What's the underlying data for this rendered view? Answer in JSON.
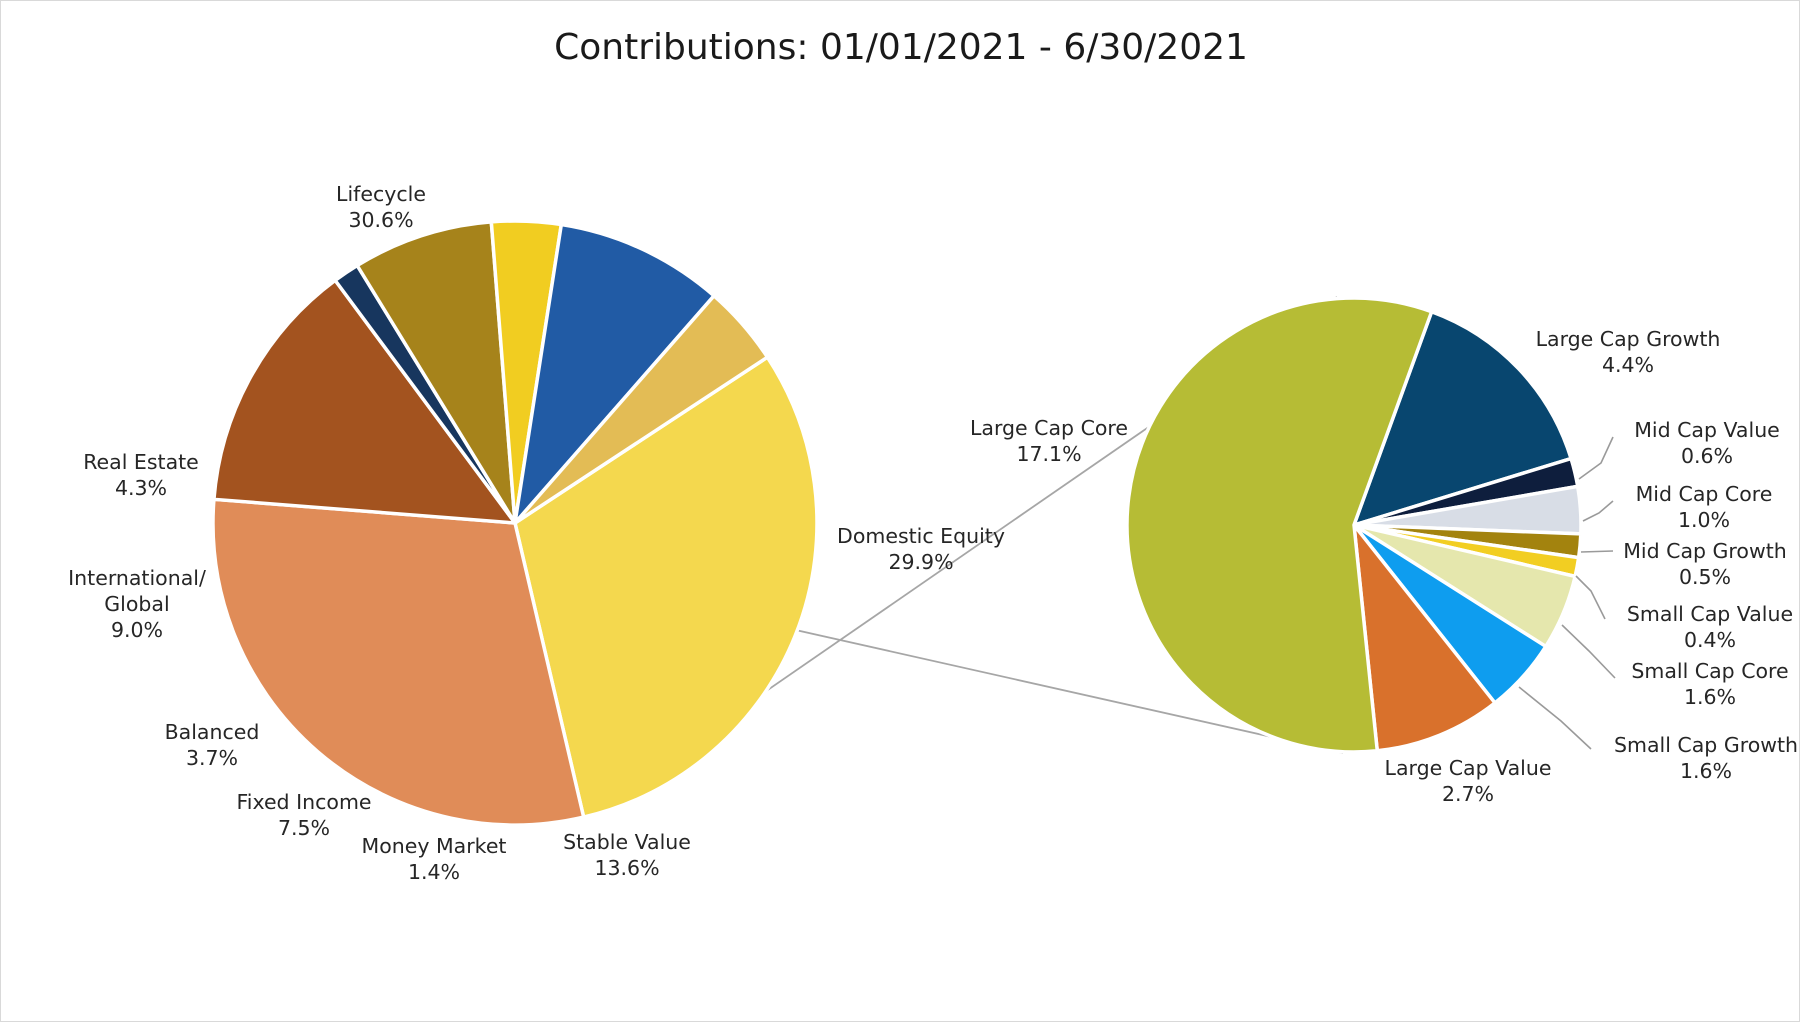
{
  "chart_data": {
    "type": "pie",
    "title": "Contributions: 01/01/2021 - 6/30/2021",
    "subtype": "pie-of-pie",
    "legend": "none",
    "main_pie": {
      "slices": [
        {
          "label": "Lifecycle",
          "value": 30.6,
          "display": "30.6%",
          "color": "#F4D84E"
        },
        {
          "label": "Domestic Equity",
          "value": 29.9,
          "display": "29.9%",
          "color": "#E08C58"
        },
        {
          "label": "Stable Value",
          "value": 13.6,
          "display": "13.6%",
          "color": "#A3531F"
        },
        {
          "label": "Money Market",
          "value": 1.4,
          "display": "1.4%",
          "color": "#17365E"
        },
        {
          "label": "Fixed Income",
          "value": 7.5,
          "display": "7.5%",
          "color": "#A6831B"
        },
        {
          "label": "Balanced",
          "value": 3.7,
          "display": "3.7%",
          "color": "#F1CD21"
        },
        {
          "label": "International/\nGlobal",
          "value": 9.0,
          "display": "9.0%",
          "color": "#215BA5"
        },
        {
          "label": "Real Estate",
          "value": 4.3,
          "display": "4.3%",
          "color": "#E3BC55"
        }
      ]
    },
    "secondary_pie": {
      "breakdown_of": "Domestic Equity",
      "slices": [
        {
          "label": "Large Cap Growth",
          "value": 4.4,
          "display": "4.4%",
          "color": "#08466F"
        },
        {
          "label": "Mid Cap Value",
          "value": 0.6,
          "display": "0.6%",
          "color": "#0E1E3D"
        },
        {
          "label": "Mid Cap Core",
          "value": 1.0,
          "display": "1.0%",
          "color": "#D8DDE6"
        },
        {
          "label": "Mid Cap Growth",
          "value": 0.5,
          "display": "0.5%",
          "color": "#A3830E"
        },
        {
          "label": "Small Cap Value",
          "value": 0.4,
          "display": "0.4%",
          "color": "#F2CE22"
        },
        {
          "label": "Small Cap Core",
          "value": 1.6,
          "display": "1.6%",
          "color": "#E5E7AD"
        },
        {
          "label": "Small Cap Growth",
          "value": 1.6,
          "display": "1.6%",
          "color": "#0E9DEF"
        },
        {
          "label": "Large Cap Value",
          "value": 2.7,
          "display": "2.7%",
          "color": "#D9712C"
        },
        {
          "label": "Large Cap Core",
          "value": 17.1,
          "display": "17.1%",
          "color": "#B6BC35"
        }
      ]
    }
  }
}
